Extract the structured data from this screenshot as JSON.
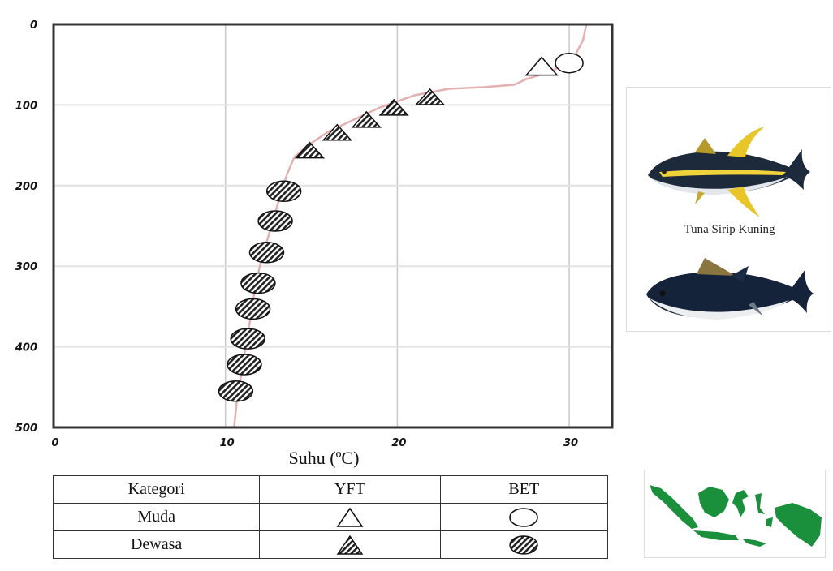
{
  "chart_data": {
    "type": "scatter",
    "xlabel": "Suhu (ºC)",
    "ylabel": "",
    "xlim": [
      0,
      32.5
    ],
    "ylim": [
      500,
      0
    ],
    "x_ticks": [
      "0",
      "10",
      "20",
      "30"
    ],
    "y_ticks": [
      "0",
      "100",
      "200",
      "300",
      "400",
      "500"
    ],
    "grid": true,
    "profile_line": {
      "color": "#e3b1b1",
      "points": [
        [
          31.0,
          0
        ],
        [
          30.8,
          20
        ],
        [
          30.3,
          40
        ],
        [
          29.0,
          58
        ],
        [
          27.5,
          68
        ],
        [
          26.8,
          75
        ],
        [
          25.0,
          78
        ],
        [
          23.0,
          80
        ],
        [
          21.0,
          88
        ],
        [
          19.0,
          103
        ],
        [
          17.5,
          118
        ],
        [
          16.0,
          133
        ],
        [
          14.8,
          150
        ],
        [
          14.0,
          165
        ],
        [
          13.6,
          185
        ],
        [
          13.3,
          205
        ],
        [
          12.8,
          240
        ],
        [
          12.4,
          270
        ],
        [
          12.0,
          300
        ],
        [
          11.7,
          330
        ],
        [
          11.5,
          360
        ],
        [
          11.2,
          395
        ],
        [
          11.0,
          425
        ],
        [
          10.7,
          460
        ],
        [
          10.5,
          500
        ]
      ]
    },
    "series": [
      {
        "name": "YFT Muda",
        "marker": "triangle-open",
        "points": [
          [
            28.4,
            53
          ]
        ]
      },
      {
        "name": "BET Muda",
        "marker": "circle-open",
        "points": [
          [
            30.0,
            48
          ]
        ]
      },
      {
        "name": "YFT Dewasa",
        "marker": "triangle-hatched",
        "points": [
          [
            14.9,
            157
          ],
          [
            16.5,
            135
          ],
          [
            18.2,
            119
          ],
          [
            19.8,
            104
          ],
          [
            21.9,
            91
          ]
        ]
      },
      {
        "name": "BET Dewasa",
        "marker": "circle-hatched",
        "points": [
          [
            13.4,
            207
          ],
          [
            12.9,
            244
          ],
          [
            12.4,
            283
          ],
          [
            11.9,
            321
          ],
          [
            11.6,
            353
          ],
          [
            11.3,
            390
          ],
          [
            11.1,
            422
          ],
          [
            10.6,
            455
          ]
        ]
      }
    ]
  },
  "legend": {
    "header": [
      "Kategori",
      "YFT",
      "BET"
    ],
    "rows": [
      "Muda",
      "Dewasa"
    ]
  },
  "images": {
    "fish_caption": "Tuna Sirip Kuning"
  }
}
